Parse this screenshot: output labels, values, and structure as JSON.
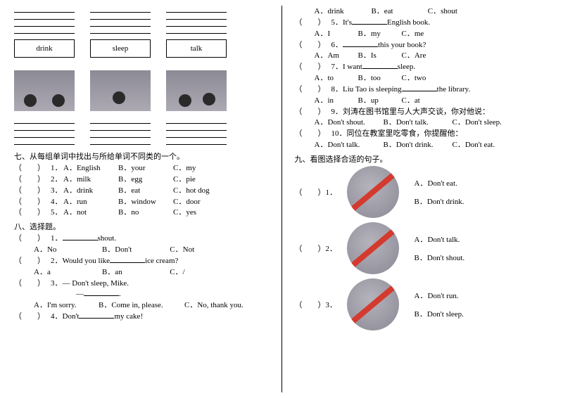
{
  "left": {
    "words": [
      "drink",
      "sleep",
      "talk"
    ],
    "section7": {
      "title": "七、从每组单词中找出与所给单词不同类的一个。",
      "rows": [
        {
          "n": "1",
          "a": "English",
          "b": "your",
          "c": "my"
        },
        {
          "n": "2",
          "a": "milk",
          "b": "egg",
          "c": "pie"
        },
        {
          "n": "3",
          "a": "drink",
          "b": "eat",
          "c": "hot dog"
        },
        {
          "n": "4",
          "a": "run",
          "b": "window",
          "c": "door"
        },
        {
          "n": "5",
          "a": "not",
          "b": "no",
          "c": "yes"
        }
      ]
    },
    "section8": {
      "title": "八、选择题。",
      "q1": {
        "n": "1",
        "stem_a": "",
        "stem_b": "shout.",
        "a": "No",
        "b": "Don't",
        "c": "Not"
      },
      "q2": {
        "n": "2",
        "stem_a": "Would you like",
        "stem_b": "ice cream?",
        "a": "a",
        "b": "an",
        "c": "/"
      },
      "q3": {
        "n": "3",
        "stem": "— Don't sleep, Mike.",
        "dash": "—",
        "a": "I'm sorry.",
        "b": "Come in, please.",
        "c": "No, thank you."
      },
      "q4": {
        "n": "4",
        "stem_a": "Don't",
        "stem_b": "my cake!"
      }
    }
  },
  "right": {
    "q4opts": {
      "a": "drink",
      "b": "eat",
      "c": "shout"
    },
    "q5": {
      "n": "5",
      "stem_a": "It's",
      "stem_b": "English book.",
      "a": "I",
      "b": "my",
      "c": "me"
    },
    "q6": {
      "n": "6",
      "stem_a": "",
      "stem_b": "this your book?",
      "a": "Am",
      "b": "Is",
      "c": "Are"
    },
    "q7": {
      "n": "7",
      "stem_a": "I want",
      "stem_b": "sleep.",
      "a": "to",
      "b": "too",
      "c": "two"
    },
    "q8": {
      "n": "8",
      "stem_a": "Liu Tao is sleeping",
      "stem_b": "the library.",
      "a": "in",
      "b": "up",
      "c": "at"
    },
    "q9": {
      "n": "9",
      "stem": "刘涛在图书馆里与人大声交谈，你对他说：",
      "a": "Don't shout.",
      "b": "Don't talk.",
      "c": "Don't sleep."
    },
    "q10": {
      "n": "10",
      "stem": "同位在教室里吃零食，你提醒他：",
      "a": "Don't talk.",
      "b": "Don't drink.",
      "c": "Don't eat."
    },
    "section9": {
      "title": "九、看图选择合适的句子。",
      "rows": [
        {
          "n": "1",
          "a": "Don't eat.",
          "b": "Don't drink."
        },
        {
          "n": "2",
          "a": "Don't talk.",
          "b": "Don't shout."
        },
        {
          "n": "3",
          "a": "Don't run.",
          "b": "Don't sleep."
        }
      ]
    }
  }
}
